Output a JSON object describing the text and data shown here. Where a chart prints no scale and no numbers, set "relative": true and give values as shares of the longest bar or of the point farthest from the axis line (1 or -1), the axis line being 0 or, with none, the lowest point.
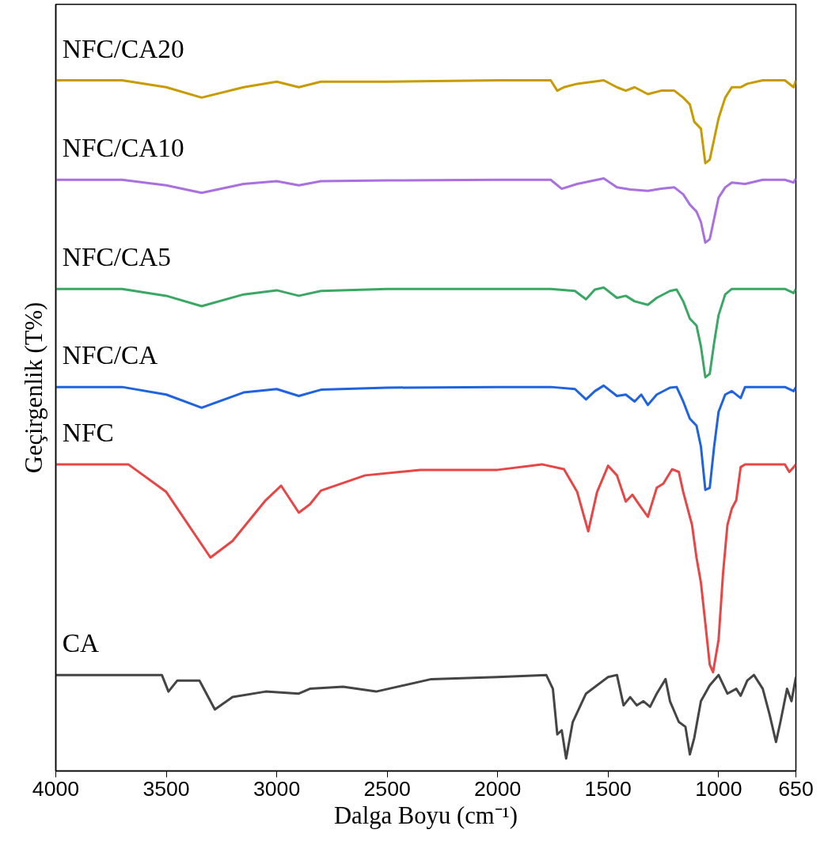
{
  "chart_data": {
    "type": "line",
    "relative": true,
    "xlabel": "Dalga Boyu (cm⁻¹)",
    "ylabel": "Geçirgenlik (T%)",
    "xlim": [
      4000,
      650
    ],
    "xticks": [
      4000,
      3500,
      3000,
      2500,
      2000,
      1500,
      1000,
      650
    ],
    "grid": false,
    "tick_labels": "x",
    "series": [
      {
        "name": "NFC/CA20",
        "color": "#c89b00",
        "x": [
          4000,
          3700,
          3500,
          3340,
          3150,
          3000,
          2900,
          2800,
          2500,
          2000,
          1760,
          1730,
          1700,
          1640,
          1520,
          1460,
          1420,
          1380,
          1320,
          1260,
          1200,
          1160,
          1130,
          1110,
          1080,
          1060,
          1040,
          1020,
          1000,
          970,
          940,
          900,
          870,
          800,
          700,
          660,
          650
        ],
        "values": [
          1.0,
          1.0,
          0.99,
          0.975,
          0.99,
          0.998,
          0.99,
          0.998,
          0.998,
          1.0,
          1.0,
          0.985,
          0.99,
          0.995,
          1.0,
          0.99,
          0.985,
          0.99,
          0.98,
          0.985,
          0.985,
          0.975,
          0.965,
          0.94,
          0.93,
          0.88,
          0.885,
          0.915,
          0.945,
          0.975,
          0.99,
          0.99,
          0.995,
          1.0,
          1.0,
          0.99,
          1.0
        ]
      },
      {
        "name": "NFC/CA10",
        "color": "#a970e0",
        "x": [
          4000,
          3700,
          3500,
          3340,
          3150,
          3000,
          2900,
          2800,
          2500,
          2000,
          1760,
          1710,
          1640,
          1520,
          1460,
          1400,
          1320,
          1260,
          1200,
          1160,
          1130,
          1100,
          1080,
          1060,
          1040,
          1020,
          1000,
          970,
          940,
          880,
          800,
          700,
          660,
          650
        ],
        "values": [
          0.856,
          0.856,
          0.848,
          0.837,
          0.85,
          0.854,
          0.848,
          0.854,
          0.855,
          0.856,
          0.856,
          0.843,
          0.85,
          0.858,
          0.845,
          0.842,
          0.84,
          0.843,
          0.845,
          0.835,
          0.82,
          0.81,
          0.795,
          0.765,
          0.77,
          0.8,
          0.83,
          0.845,
          0.852,
          0.85,
          0.856,
          0.856,
          0.852,
          0.858
        ]
      },
      {
        "name": "NFC/CA5",
        "color": "#3aa864",
        "x": [
          4000,
          3700,
          3500,
          3340,
          3150,
          3000,
          2900,
          2800,
          2500,
          2000,
          1760,
          1650,
          1600,
          1560,
          1520,
          1460,
          1420,
          1380,
          1320,
          1280,
          1220,
          1190,
          1160,
          1130,
          1100,
          1080,
          1060,
          1040,
          1020,
          1000,
          970,
          940,
          880,
          800,
          700,
          660,
          650
        ],
        "values": [
          0.698,
          0.698,
          0.688,
          0.673,
          0.69,
          0.696,
          0.688,
          0.695,
          0.698,
          0.698,
          0.698,
          0.695,
          0.683,
          0.697,
          0.7,
          0.685,
          0.688,
          0.68,
          0.675,
          0.685,
          0.695,
          0.697,
          0.68,
          0.655,
          0.645,
          0.615,
          0.57,
          0.575,
          0.62,
          0.66,
          0.69,
          0.698,
          0.698,
          0.698,
          0.698,
          0.692,
          0.698
        ]
      },
      {
        "name": "NFC/CA",
        "color": "#1f63e0",
        "x": [
          4000,
          3700,
          3500,
          3340,
          3150,
          3000,
          2900,
          2800,
          2500,
          2000,
          1760,
          1650,
          1600,
          1560,
          1520,
          1460,
          1420,
          1380,
          1350,
          1320,
          1280,
          1220,
          1190,
          1160,
          1130,
          1100,
          1080,
          1060,
          1040,
          1020,
          1000,
          970,
          940,
          900,
          880,
          800,
          700,
          660,
          650
        ],
        "values": [
          0.556,
          0.556,
          0.545,
          0.526,
          0.548,
          0.553,
          0.543,
          0.552,
          0.555,
          0.556,
          0.556,
          0.553,
          0.538,
          0.55,
          0.558,
          0.543,
          0.545,
          0.535,
          0.545,
          0.53,
          0.545,
          0.555,
          0.556,
          0.535,
          0.51,
          0.5,
          0.47,
          0.407,
          0.41,
          0.47,
          0.52,
          0.545,
          0.55,
          0.54,
          0.556,
          0.556,
          0.556,
          0.55,
          0.556
        ]
      },
      {
        "name": "NFC",
        "color": "#e84545",
        "x": [
          4000,
          3672,
          3500,
          3300,
          3200,
          3050,
          2980,
          2900,
          2850,
          2800,
          2600,
          2350,
          2000,
          1800,
          1700,
          1640,
          1590,
          1550,
          1500,
          1460,
          1420,
          1390,
          1360,
          1320,
          1280,
          1250,
          1210,
          1180,
          1160,
          1120,
          1100,
          1080,
          1060,
          1040,
          1025,
          1000,
          980,
          960,
          940,
          920,
          900,
          880,
          700,
          680,
          660,
          650
        ],
        "values": [
          0.444,
          0.444,
          0.404,
          0.309,
          0.333,
          0.392,
          0.413,
          0.374,
          0.386,
          0.406,
          0.428,
          0.436,
          0.436,
          0.444,
          0.437,
          0.404,
          0.347,
          0.404,
          0.442,
          0.428,
          0.39,
          0.4,
          0.386,
          0.368,
          0.41,
          0.416,
          0.437,
          0.433,
          0.404,
          0.356,
          0.309,
          0.273,
          0.214,
          0.154,
          0.143,
          0.19,
          0.285,
          0.356,
          0.38,
          0.392,
          0.44,
          0.444,
          0.444,
          0.433,
          0.44,
          0.444
        ]
      },
      {
        "name": "CA",
        "color": "#454545",
        "x": [
          4000,
          3520,
          3490,
          3450,
          3350,
          3280,
          3200,
          3050,
          2900,
          2850,
          2700,
          2550,
          2300,
          2000,
          1780,
          1750,
          1730,
          1710,
          1690,
          1660,
          1600,
          1500,
          1460,
          1430,
          1400,
          1370,
          1340,
          1310,
          1280,
          1240,
          1220,
          1180,
          1150,
          1130,
          1110,
          1080,
          1040,
          1000,
          960,
          920,
          900,
          870,
          840,
          800,
          770,
          740,
          720,
          690,
          670,
          650
        ],
        "values": [
          0.139,
          0.139,
          0.115,
          0.131,
          0.131,
          0.089,
          0.107,
          0.115,
          0.112,
          0.119,
          0.122,
          0.115,
          0.133,
          0.136,
          0.139,
          0.119,
          0.053,
          0.059,
          0.018,
          0.071,
          0.112,
          0.136,
          0.139,
          0.095,
          0.107,
          0.095,
          0.101,
          0.093,
          0.112,
          0.133,
          0.101,
          0.071,
          0.064,
          0.024,
          0.048,
          0.101,
          0.124,
          0.139,
          0.112,
          0.119,
          0.109,
          0.131,
          0.139,
          0.119,
          0.083,
          0.042,
          0.071,
          0.119,
          0.101,
          0.136
        ]
      }
    ]
  }
}
